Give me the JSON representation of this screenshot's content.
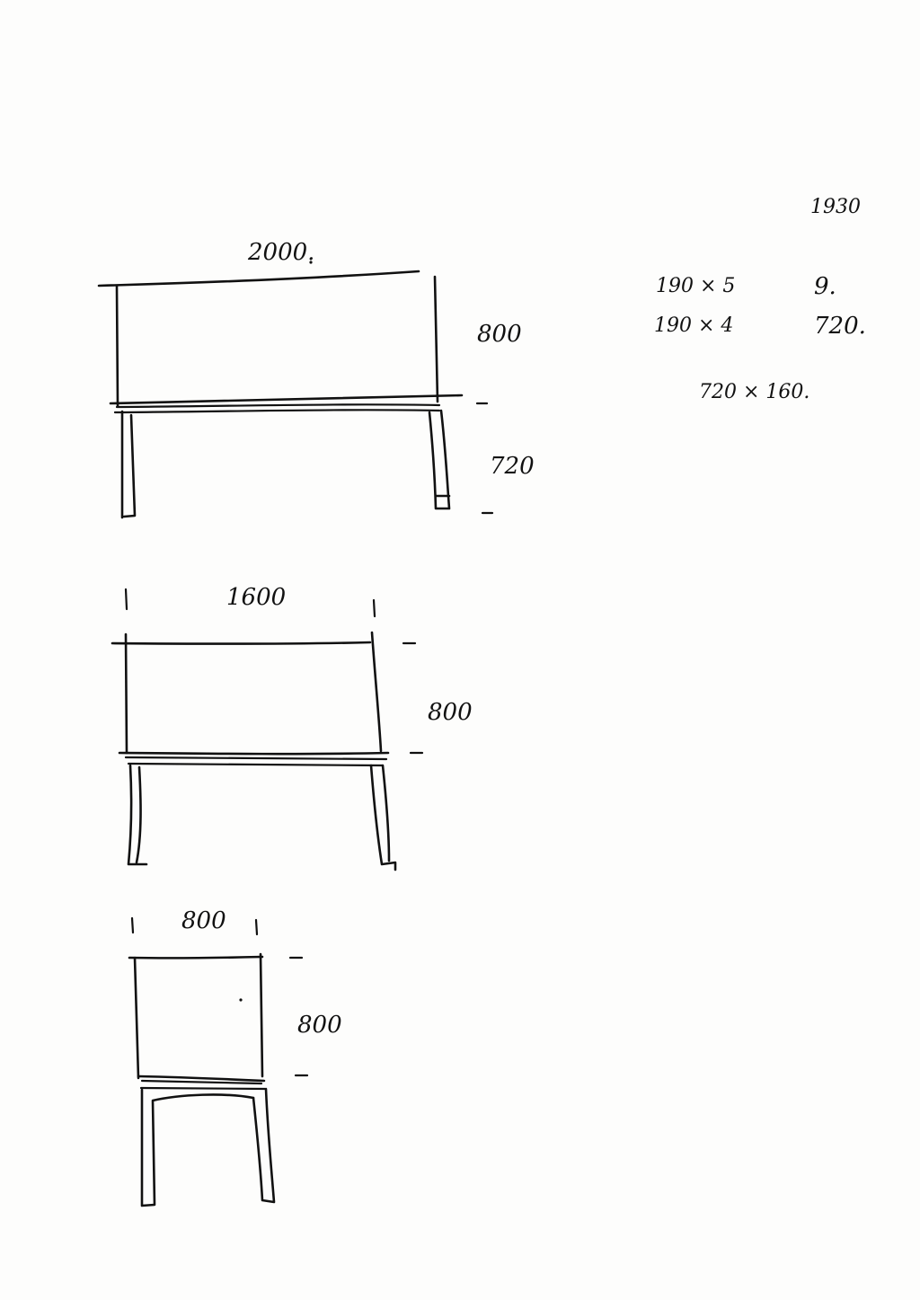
{
  "page": {
    "background": "#fdfdfc",
    "ink": "#111111"
  },
  "notes": {
    "top_right": "1930",
    "row1_left": "190 × 5",
    "row1_right": "9.",
    "row2_left": "190 × 4",
    "row2_right": "720.",
    "row3": "720 × 160."
  },
  "table1": {
    "width_label": "2000.",
    "top_height_label": "800",
    "leg_height_label": "720"
  },
  "table2": {
    "width_label": "1600",
    "top_height_label": "800"
  },
  "table3": {
    "width_label": "800",
    "top_height_label": "800"
  }
}
